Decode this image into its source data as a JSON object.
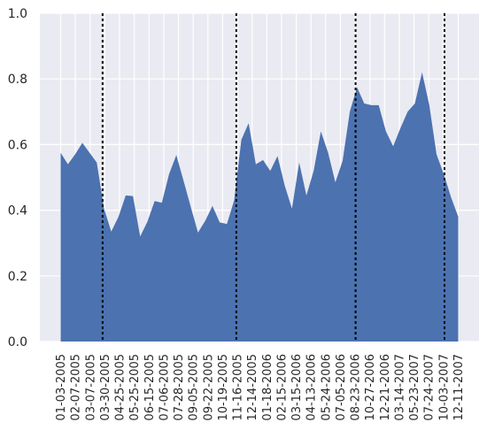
{
  "chart_data": {
    "type": "area",
    "title": "",
    "xlabel": "",
    "ylabel": "",
    "ylim": [
      0,
      1.0
    ],
    "grid": true,
    "background": "#eaeaf2",
    "fill_color": "#4c72b0",
    "vline_color": "#000000",
    "yticks": [
      0.0,
      0.2,
      0.4,
      0.6,
      0.8,
      1.0
    ],
    "ytick_labels": [
      "0.0",
      "0.2",
      "0.4",
      "0.6",
      "0.8",
      "1.0"
    ],
    "xtick_labels": [
      "01-03-2005",
      "02-07-2005",
      "03-07-2005",
      "03-30-2005",
      "04-25-2005",
      "05-25-2005",
      "06-15-2005",
      "07-06-2005",
      "07-28-2005",
      "09-05-2005",
      "09-22-2005",
      "10-19-2005",
      "11-16-2005",
      "12-14-2005",
      "01-18-2006",
      "02-15-2006",
      "03-15-2006",
      "04-13-2006",
      "05-24-2006",
      "07-05-2006",
      "08-23-2006",
      "10-27-2006",
      "12-21-2006",
      "03-14-2007",
      "05-23-2007",
      "07-24-2007",
      "10-03-2007",
      "12-11-2007"
    ],
    "values": [
      0.575,
      0.54,
      0.57,
      0.605,
      0.575,
      0.545,
      0.405,
      0.335,
      0.38,
      0.445,
      0.443,
      0.32,
      0.365,
      0.428,
      0.423,
      0.51,
      0.568,
      0.49,
      0.41,
      0.332,
      0.368,
      0.413,
      0.363,
      0.358,
      0.43,
      0.615,
      0.665,
      0.54,
      0.553,
      0.52,
      0.565,
      0.475,
      0.405,
      0.545,
      0.445,
      0.52,
      0.64,
      0.575,
      0.485,
      0.55,
      0.7,
      0.775,
      0.725,
      0.72,
      0.72,
      0.64,
      0.595,
      0.65,
      0.7,
      0.725,
      0.82,
      0.72,
      0.57,
      0.51,
      0.44,
      0.38
    ],
    "vlines": [
      5.8,
      24.3,
      40.8,
      53.1
    ]
  }
}
